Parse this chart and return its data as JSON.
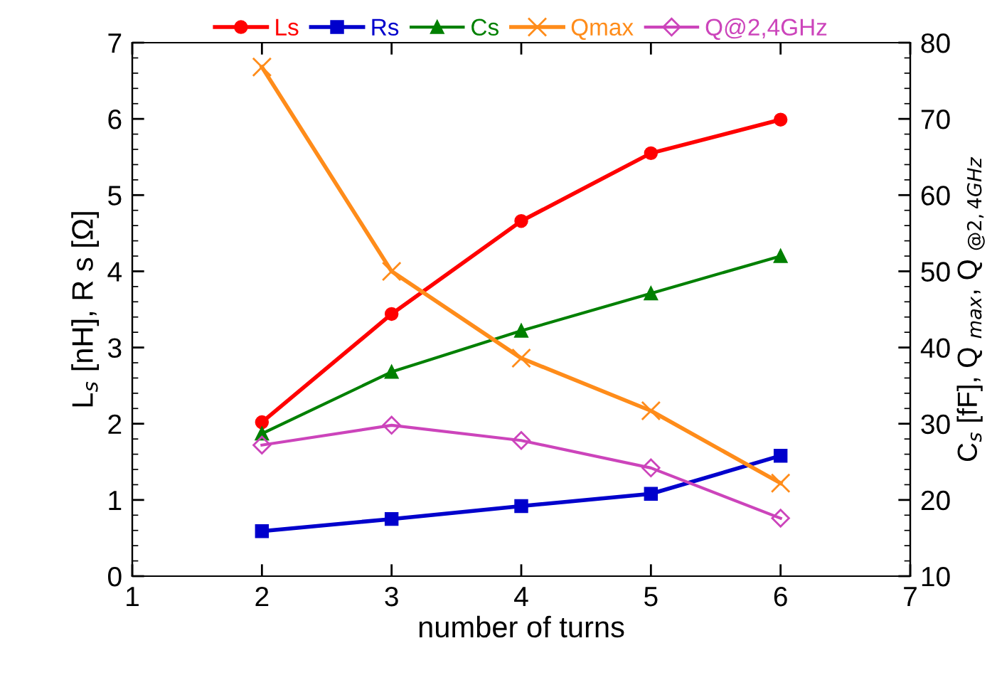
{
  "chart_data": {
    "type": "line",
    "xlabel": "number of turns",
    "ylabel": "L$_{s}$ [nH], R s [Ω]",
    "y2label": "C$_{s}$ [fF], Q $_{max}$, Q $_{@2,4GHz}$",
    "x": [
      2,
      3,
      4,
      5,
      6
    ],
    "xlim": [
      1,
      7
    ],
    "xticks": [
      1,
      2,
      3,
      4,
      5,
      6,
      7
    ],
    "ylim": [
      0,
      7
    ],
    "yticks": [
      0,
      1,
      2,
      3,
      4,
      5,
      6,
      7
    ],
    "y2lim": [
      10,
      80
    ],
    "y2ticks": [
      10,
      20,
      30,
      40,
      50,
      60,
      70,
      80
    ],
    "legend": "top",
    "grid": false,
    "series": [
      {
        "name": "Ls",
        "color": "#ff0000",
        "marker": "circle",
        "values": [
          2.02,
          3.44,
          4.66,
          5.55,
          5.99
        ]
      },
      {
        "name": "Rs",
        "color": "#0000cc",
        "marker": "square",
        "values": [
          0.59,
          0.75,
          0.92,
          1.08,
          1.58
        ]
      },
      {
        "name": "Cs",
        "color": "#008000",
        "marker": "triangle",
        "axis": "y2",
        "values": [
          28.7,
          36.8,
          42.2,
          47.1,
          52.0
        ]
      },
      {
        "name": "Qmax",
        "color": "#ff8c1a",
        "marker": "cross",
        "axis": "y2",
        "values": [
          76.8,
          50.0,
          38.6,
          31.7,
          22.2
        ]
      },
      {
        "name": "Q@2,4GHz",
        "color": "#cc44bb",
        "marker": "diamond",
        "axis": "y2",
        "values": [
          27.2,
          29.8,
          27.8,
          24.2,
          17.6
        ]
      }
    ]
  }
}
